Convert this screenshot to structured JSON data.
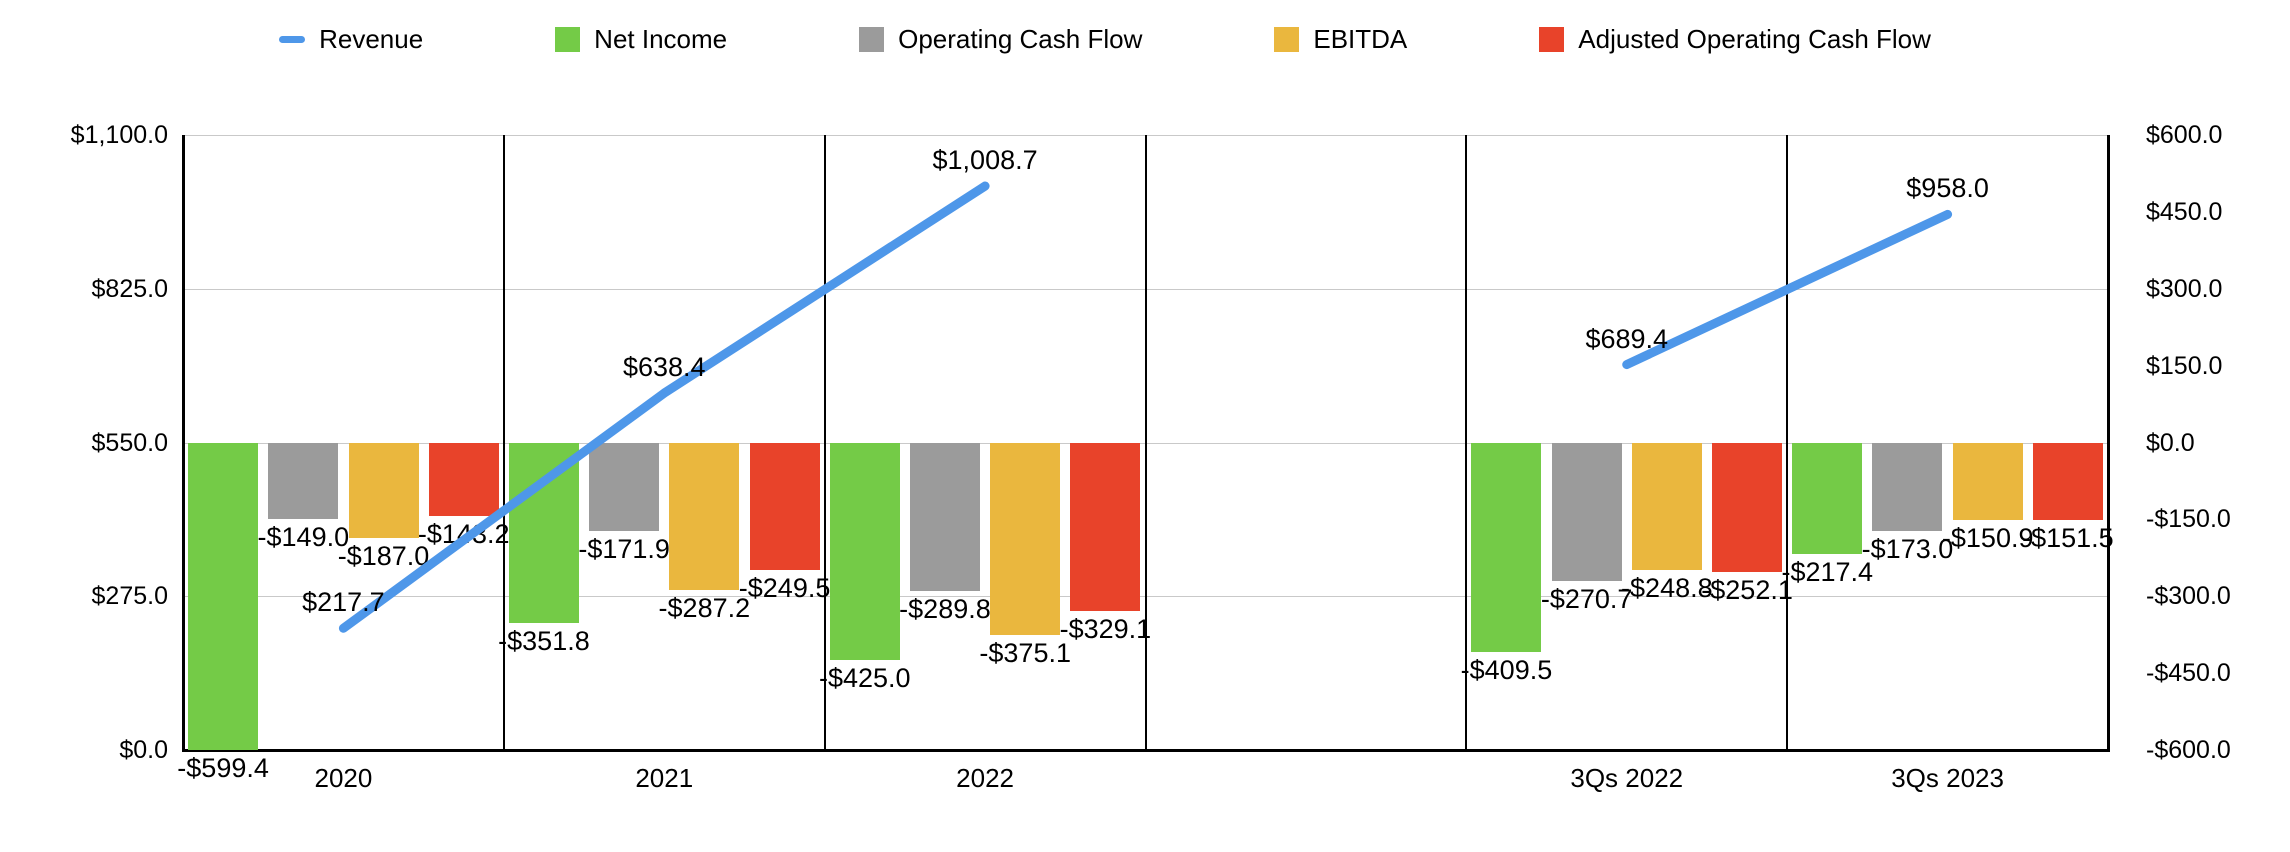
{
  "legend": [
    {
      "label": "Revenue",
      "marker": "line-dash",
      "color": "#4e97e9"
    },
    {
      "label": "Net Income",
      "marker": "square",
      "color": "#74cb47"
    },
    {
      "label": "Operating Cash Flow",
      "marker": "square",
      "color": "#9b9b9b"
    },
    {
      "label": "EBITDA",
      "marker": "square",
      "color": "#eab73e"
    },
    {
      "label": "Adjusted Operating Cash Flow",
      "marker": "square",
      "color": "#e8432a"
    }
  ],
  "chart_data": {
    "type": "combo-bar-line",
    "categories": [
      "2020",
      "2021",
      "2022",
      "",
      "3Qs 2022",
      "3Qs 2023"
    ],
    "grid": true,
    "legend_position": "top",
    "left_axis": {
      "min": 0,
      "max": 1100,
      "ticks": [
        {
          "value": 1100,
          "label": "$1,100.0"
        },
        {
          "value": 825,
          "label": "$825.0"
        },
        {
          "value": 550,
          "label": "$550.0"
        },
        {
          "value": 275,
          "label": "$275.0"
        },
        {
          "value": 0,
          "label": "$0.0"
        }
      ]
    },
    "right_axis": {
      "min": -600,
      "max": 600,
      "ticks": [
        {
          "value": 600,
          "label": "$600.0"
        },
        {
          "value": 450,
          "label": "$450.0"
        },
        {
          "value": 300,
          "label": "$300.0"
        },
        {
          "value": 150,
          "label": "$150.0"
        },
        {
          "value": 0,
          "label": "$0.0"
        },
        {
          "value": -150,
          "label": "-$150.0"
        },
        {
          "value": -300,
          "label": "-$300.0"
        },
        {
          "value": -450,
          "label": "-$450.0"
        },
        {
          "value": -600,
          "label": "-$600.0"
        }
      ]
    },
    "series": [
      {
        "name": "Revenue",
        "type": "line",
        "axis": "left",
        "color": "#4e97e9",
        "values": [
          217.7,
          638.4,
          1008.7,
          null,
          689.4,
          958.0
        ],
        "labels": [
          "$217.7",
          "$638.4",
          "$1,008.7",
          null,
          "$689.4",
          "$958.0"
        ]
      },
      {
        "name": "Net Income",
        "type": "bar",
        "axis": "right",
        "color": "#74cb47",
        "values": [
          -599.4,
          -351.8,
          -425.0,
          null,
          -409.5,
          -217.4
        ],
        "labels": [
          "-$599.4",
          "-$351.8",
          "-$425.0",
          null,
          "-$409.5",
          "-$217.4"
        ]
      },
      {
        "name": "Operating Cash Flow",
        "type": "bar",
        "axis": "right",
        "color": "#9b9b9b",
        "values": [
          -149.0,
          -171.9,
          -289.8,
          null,
          -270.7,
          -173.0
        ],
        "labels": [
          "-$149.0",
          "-$171.9",
          "-$289.8",
          null,
          "-$270.7",
          "-$173.0"
        ]
      },
      {
        "name": "EBITDA",
        "type": "bar",
        "axis": "right",
        "color": "#eab73e",
        "values": [
          -187.0,
          -287.2,
          -375.1,
          null,
          -248.8,
          -150.9
        ],
        "labels": [
          "-$187.0",
          "-$287.2",
          "-$375.1",
          null,
          "-$248.8",
          "-$150.9"
        ]
      },
      {
        "name": "Adjusted Operating Cash Flow",
        "type": "bar",
        "axis": "right",
        "color": "#e8432a",
        "values": [
          -143.2,
          -249.5,
          -329.1,
          null,
          -252.1,
          -151.5
        ],
        "labels": [
          "-$143.2",
          "-$249.5",
          "-$329.1",
          null,
          "-$252.1",
          "-$151.5"
        ]
      }
    ]
  }
}
